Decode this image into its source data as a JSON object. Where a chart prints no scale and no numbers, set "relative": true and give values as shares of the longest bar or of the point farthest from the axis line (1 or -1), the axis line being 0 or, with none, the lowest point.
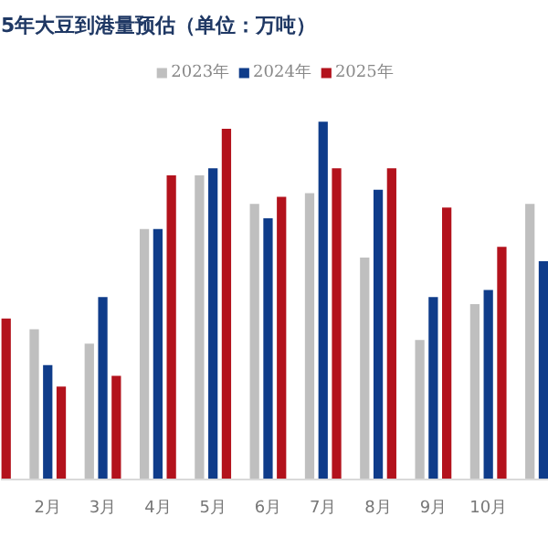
{
  "chart_data": {
    "type": "bar",
    "title": "5年大豆到港量预估（单位：万吨）",
    "relative": true,
    "legend": "top",
    "grid": false,
    "categories": [
      null,
      "2月",
      "3月",
      "4月",
      "5月",
      "6月",
      "7月",
      "8月",
      "9月",
      "10月",
      null
    ],
    "series": [
      {
        "name": "2023年",
        "color": "#bfbfbf",
        "values": [
          null,
          0.42,
          0.38,
          0.7,
          0.85,
          0.77,
          0.8,
          0.62,
          0.39,
          0.49,
          0.77
        ]
      },
      {
        "name": "2024年",
        "color": "#0f3c8a",
        "values": [
          null,
          0.32,
          0.51,
          0.7,
          0.87,
          0.73,
          1,
          0.81,
          0.51,
          0.53,
          0.61
        ]
      },
      {
        "name": "2025年",
        "color": "#b3121c",
        "values": [
          0.45,
          0.26,
          0.29,
          0.85,
          0.98,
          0.79,
          0.87,
          0.87,
          0.76,
          0.65,
          null
        ]
      }
    ]
  }
}
